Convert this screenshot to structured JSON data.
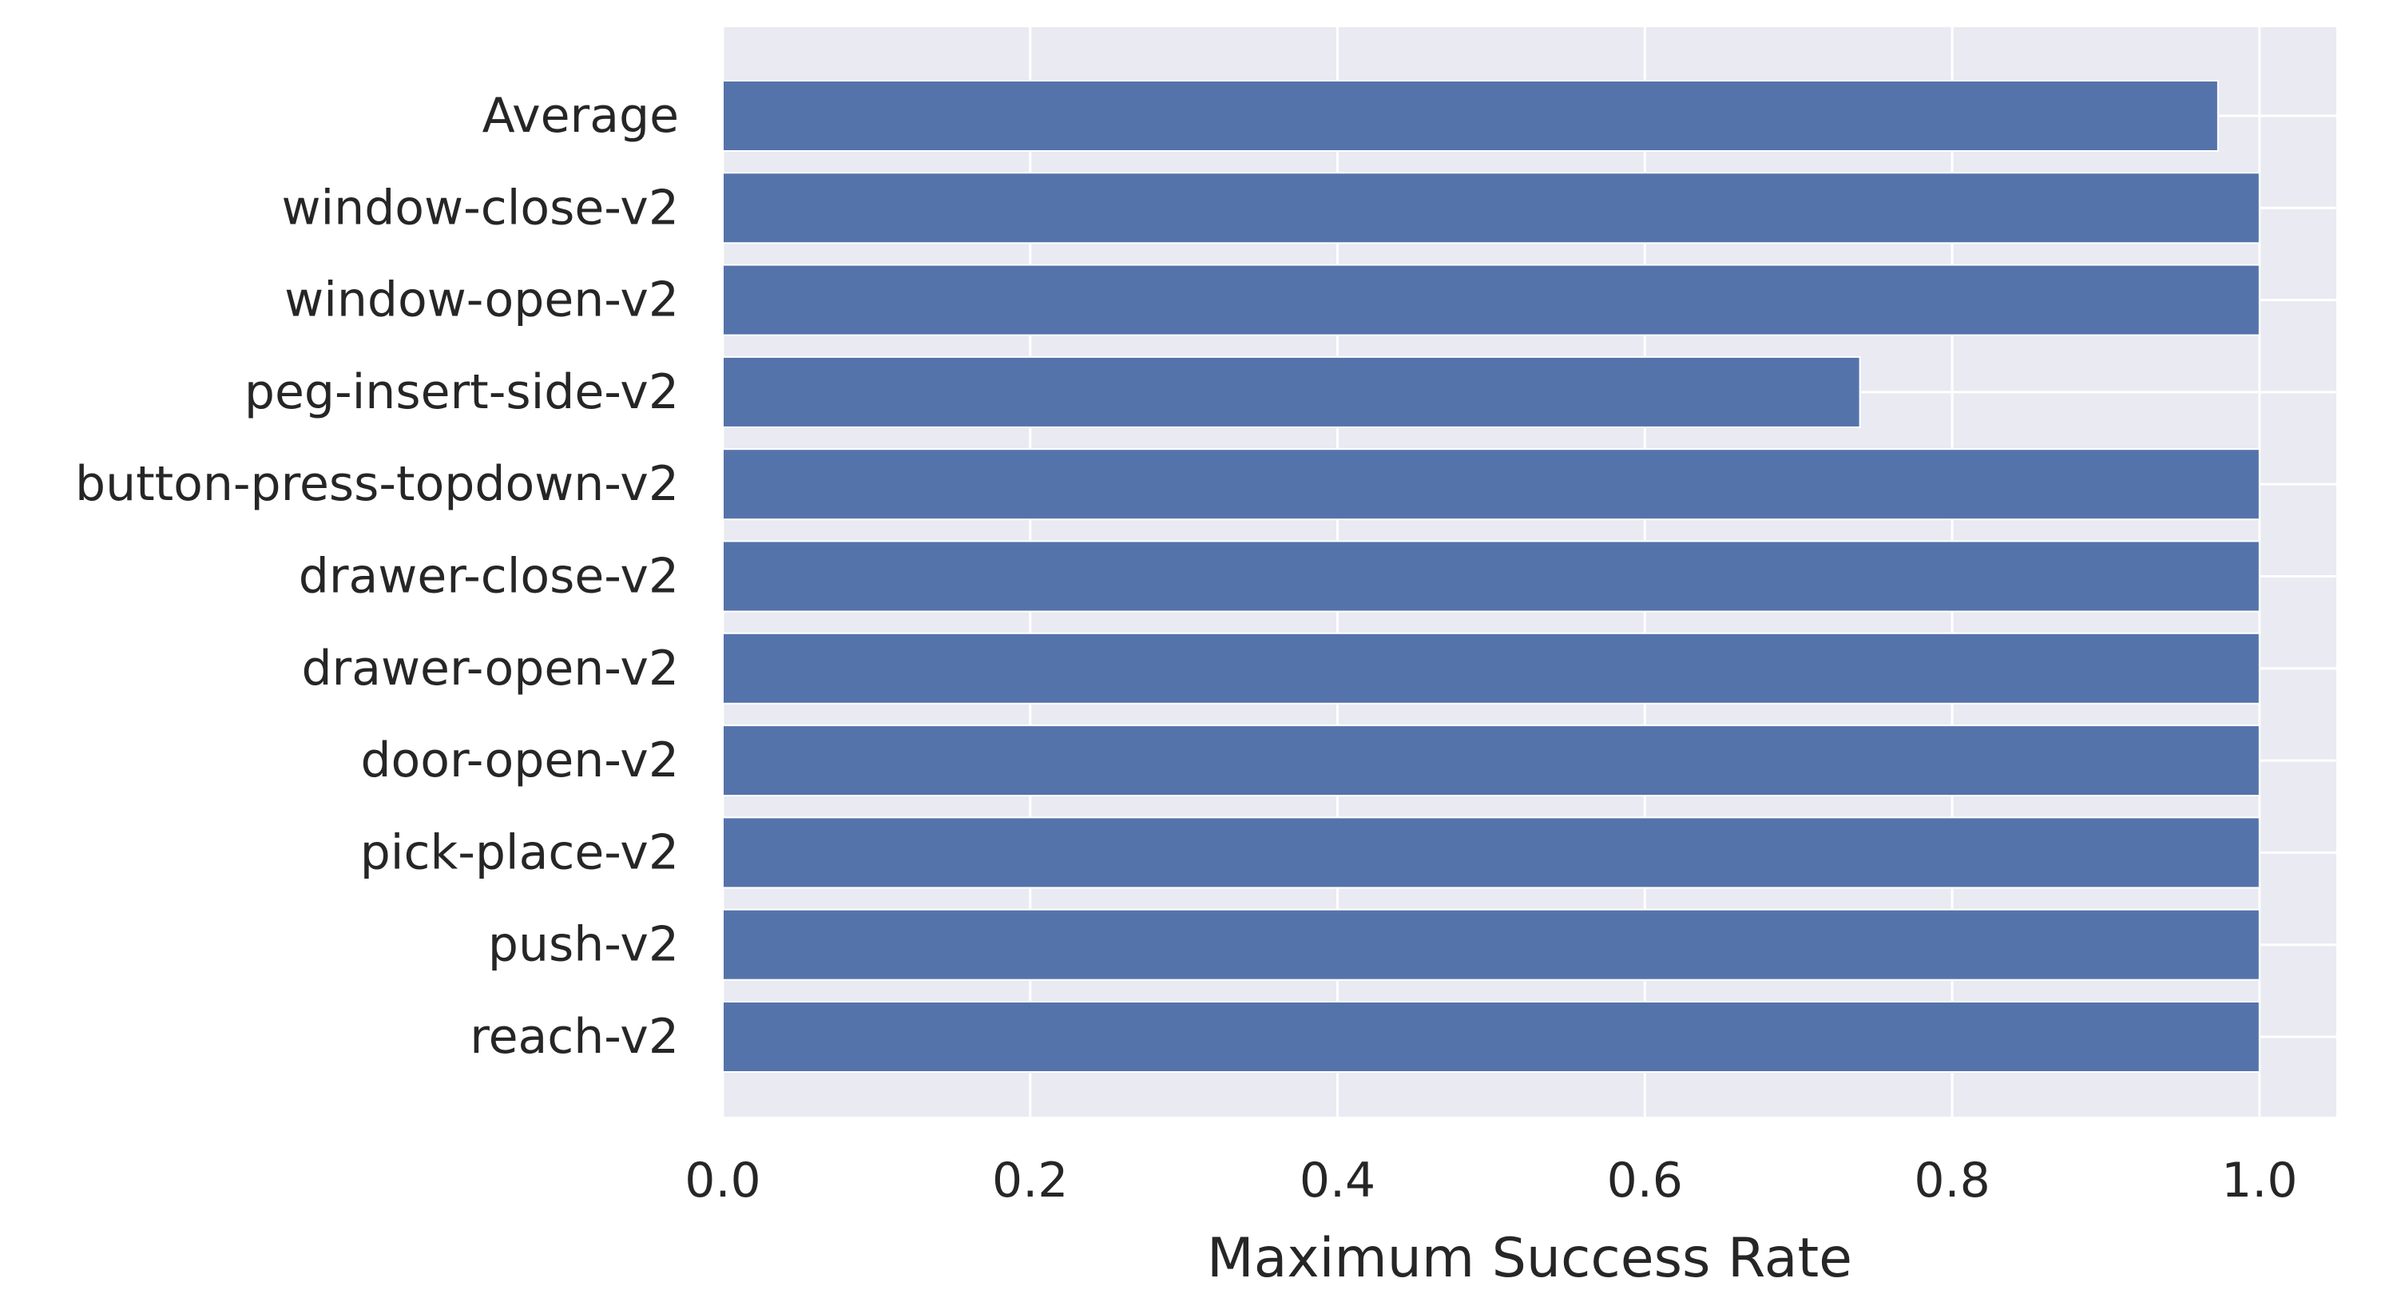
{
  "chart_data": {
    "type": "bar",
    "orientation": "horizontal",
    "categories": [
      "Average",
      "window-close-v2",
      "window-open-v2",
      "peg-insert-side-v2",
      "button-press-topdown-v2",
      "drawer-close-v2",
      "drawer-open-v2",
      "door-open-v2",
      "pick-place-v2",
      "push-v2",
      "reach-v2"
    ],
    "values": [
      0.973,
      1.0,
      1.0,
      0.74,
      1.0,
      1.0,
      1.0,
      1.0,
      1.0,
      1.0,
      1.0
    ],
    "title": "",
    "xlabel": "Maximum Success Rate",
    "ylabel": "",
    "xlim": [
      0,
      1.05
    ],
    "xticks": [
      "0.0",
      "0.2",
      "0.4",
      "0.6",
      "0.8",
      "1.0"
    ],
    "grid": true,
    "legend": "none",
    "colors": {
      "bar": "#5573ab",
      "bar_edge": "#ffffff",
      "plot_background": "#eaeaf2",
      "grid": "#ffffff",
      "text": "#262626"
    }
  }
}
